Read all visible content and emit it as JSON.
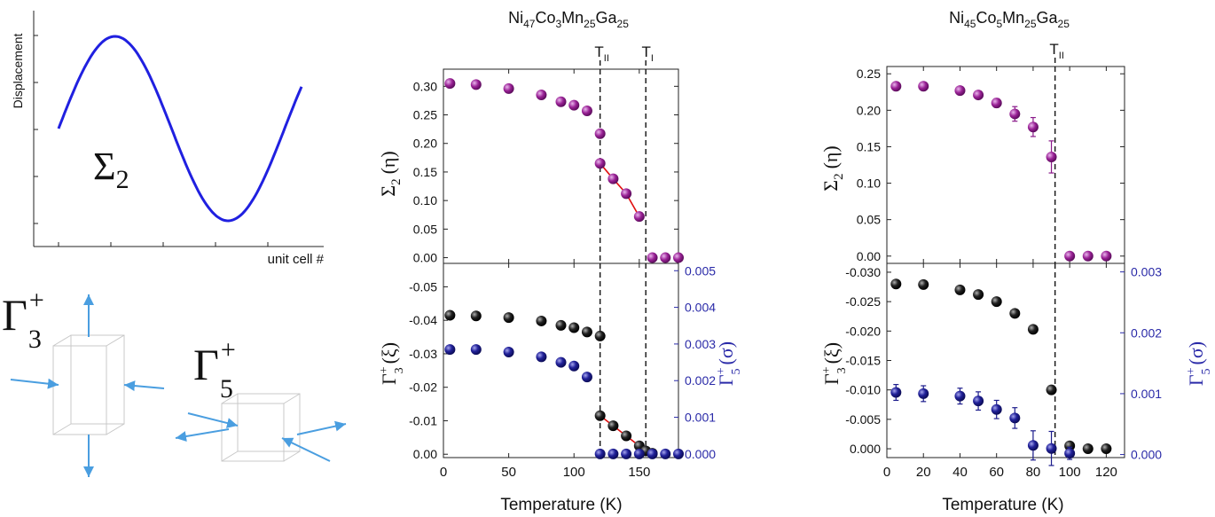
{
  "left": {
    "sine_ylabel": "Displacement",
    "sine_xlabel": "unit cell #",
    "sigma_label": "Σ",
    "sigma_sub": "2",
    "gamma3": {
      "base": "Γ",
      "sup": "+",
      "sub": "3"
    },
    "gamma5": {
      "base": "Γ",
      "sup": "+",
      "sub": "5"
    }
  },
  "ylabel_sigma": {
    "base": "Σ",
    "sub": "2",
    "arg": "(η)"
  },
  "ylabel_gamma3": {
    "base": "Γ",
    "sup": "+",
    "sub": "3",
    "arg": "(ξ)"
  },
  "ylabel_gamma5": {
    "base": "Γ",
    "sup": "+",
    "sub": "5",
    "arg": "(σ)"
  },
  "xlabel": "Temperature (K)",
  "colors": {
    "purple": "#8a1a8a",
    "black": "#111111",
    "navy": "#1c1c8c",
    "red": "#e01010",
    "blue_right_axis": "#2a2aa8",
    "sine": "#2020e0",
    "arrow": "#4a9ee0"
  },
  "chart_data": [
    {
      "type": "scatter",
      "panel": "top",
      "title_parts": [
        "Ni",
        "47",
        "Co",
        "3",
        "Mn",
        "25",
        "Ga",
        "25"
      ],
      "vlines": [
        {
          "x": 120,
          "label": "T",
          "sub": "II"
        },
        {
          "x": 155,
          "label": "T",
          "sub": "I"
        }
      ],
      "xlim": [
        0,
        180
      ],
      "xticks": [
        0,
        50,
        100,
        150
      ],
      "ylim": [
        -0.01,
        0.33
      ],
      "yticks": [
        0.0,
        0.05,
        0.1,
        0.15,
        0.2,
        0.25,
        0.3
      ],
      "series": [
        {
          "points": [
            [
              5,
              0.305
            ],
            [
              25,
              0.303
            ],
            [
              50,
              0.296
            ],
            [
              75,
              0.285
            ],
            [
              90,
              0.273
            ],
            [
              100,
              0.267
            ],
            [
              110,
              0.257
            ],
            [
              120,
              0.217
            ],
            [
              120,
              0.165
            ],
            [
              130,
              0.138
            ],
            [
              140,
              0.112
            ],
            [
              150,
              0.072
            ],
            [
              160,
              0.0
            ],
            [
              170,
              0.0
            ],
            [
              180,
              0.0
            ]
          ]
        }
      ],
      "fit_line": [
        [
          120,
          0.165
        ],
        [
          130,
          0.138
        ],
        [
          140,
          0.112
        ],
        [
          150,
          0.072
        ]
      ]
    },
    {
      "type": "scatter",
      "panel": "bottom",
      "xlim": [
        0,
        180
      ],
      "xticks": [
        0,
        50,
        100,
        150
      ],
      "ylim": [
        0.001,
        -0.057
      ],
      "yticks": [
        0.0,
        -0.01,
        -0.02,
        -0.03,
        -0.04,
        -0.05
      ],
      "y2lim": [
        -0.0001,
        0.0052
      ],
      "y2ticks": [
        0.0,
        0.001,
        0.002,
        0.003,
        0.004,
        0.005
      ],
      "series": [
        {
          "axis": "left",
          "points": [
            [
              5,
              -0.0415
            ],
            [
              25,
              -0.0413
            ],
            [
              50,
              -0.0408
            ],
            [
              75,
              -0.0398
            ],
            [
              90,
              -0.0385
            ],
            [
              100,
              -0.0378
            ],
            [
              110,
              -0.0365
            ],
            [
              120,
              -0.0353
            ],
            [
              120,
              -0.0115
            ],
            [
              130,
              -0.0085
            ],
            [
              140,
              -0.0055
            ],
            [
              150,
              -0.0025
            ],
            [
              155,
              -0.001
            ],
            [
              160,
              -0.0003
            ]
          ]
        },
        {
          "axis": "right",
          "points": [
            [
              5,
              0.00285
            ],
            [
              25,
              0.00285
            ],
            [
              50,
              0.00278
            ],
            [
              75,
              0.00265
            ],
            [
              90,
              0.0025
            ],
            [
              100,
              0.0024
            ],
            [
              110,
              0.0021
            ],
            [
              120,
              0.0
            ],
            [
              130,
              0.0
            ],
            [
              140,
              0.0
            ],
            [
              150,
              0.0
            ],
            [
              160,
              0.0
            ],
            [
              170,
              0.0
            ],
            [
              180,
              0.0
            ]
          ]
        }
      ],
      "fit_line": [
        [
          120,
          -0.0115
        ],
        [
          130,
          -0.0085
        ],
        [
          140,
          -0.0055
        ],
        [
          150,
          -0.0025
        ],
        [
          160,
          -0.0003
        ]
      ]
    },
    {
      "type": "scatter",
      "panel": "top",
      "title_parts": [
        "Ni",
        "45",
        "Co",
        "5",
        "Mn",
        "25",
        "Ga",
        "25"
      ],
      "vlines": [
        {
          "x": 92,
          "label": "T",
          "sub": "II"
        }
      ],
      "xlim": [
        0,
        130
      ],
      "xticks": [
        0,
        20,
        40,
        60,
        80,
        100,
        120
      ],
      "ylim": [
        -0.01,
        0.26
      ],
      "yticks": [
        0.0,
        0.05,
        0.1,
        0.15,
        0.2,
        0.25
      ],
      "series": [
        {
          "points": [
            [
              5,
              0.233,
              0
            ],
            [
              20,
              0.233,
              0
            ],
            [
              40,
              0.227,
              0.004
            ],
            [
              50,
              0.221,
              0.005
            ],
            [
              60,
              0.21,
              0.006
            ],
            [
              70,
              0.195,
              0.01
            ],
            [
              80,
              0.177,
              0.013
            ],
            [
              90,
              0.136,
              0.022
            ],
            [
              100,
              0.0,
              0
            ],
            [
              110,
              0.0,
              0
            ],
            [
              120,
              0.0,
              0
            ]
          ]
        }
      ]
    },
    {
      "type": "scatter",
      "panel": "bottom",
      "xlim": [
        0,
        130
      ],
      "xticks": [
        0,
        20,
        40,
        60,
        80,
        100,
        120
      ],
      "ylim": [
        0.0015,
        -0.0315
      ],
      "yticks": [
        0.0,
        -0.005,
        -0.01,
        -0.015,
        -0.02,
        -0.025,
        -0.03
      ],
      "y2lim": [
        -5e-05,
        0.00314
      ],
      "y2ticks": [
        0.0,
        0.001,
        0.002,
        0.003
      ],
      "series": [
        {
          "axis": "left",
          "points": [
            [
              5,
              -0.028,
              0
            ],
            [
              20,
              -0.0279,
              0
            ],
            [
              40,
              -0.027,
              0
            ],
            [
              50,
              -0.0262,
              0
            ],
            [
              60,
              -0.025,
              0
            ],
            [
              70,
              -0.023,
              0
            ],
            [
              80,
              -0.0203,
              0
            ],
            [
              90,
              -0.01,
              0
            ],
            [
              100,
              -0.0005,
              0
            ],
            [
              110,
              0.0,
              0
            ],
            [
              120,
              0.0,
              0
            ]
          ]
        },
        {
          "axis": "right",
          "points": [
            [
              5,
              0.00102,
              0.00013
            ],
            [
              20,
              0.001,
              0.00013
            ],
            [
              40,
              0.00096,
              0.00013
            ],
            [
              50,
              0.00088,
              0.00015
            ],
            [
              60,
              0.00074,
              0.00015
            ],
            [
              70,
              0.0006,
              0.00017
            ],
            [
              80,
              0.00015,
              0.00024
            ],
            [
              90,
              0.0001,
              0.00028
            ],
            [
              100,
              2e-05,
              0.0001
            ]
          ]
        }
      ]
    }
  ]
}
